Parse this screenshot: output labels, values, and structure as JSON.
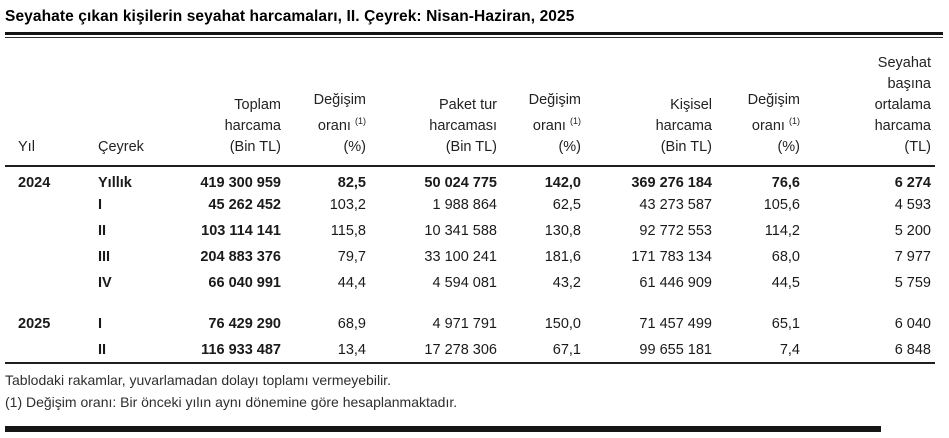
{
  "title": "Seyahate çıkan kişilerin seyahat harcamaları, II. Çeyrek: Nisan-Haziran, 2025",
  "table": {
    "columns": [
      {
        "id": "yil",
        "align": "left",
        "lines": [
          "Yıl"
        ]
      },
      {
        "id": "ceyrek",
        "align": "left",
        "lines": [
          "Çeyrek"
        ]
      },
      {
        "id": "toplam-harcama",
        "align": "right",
        "lines": [
          "Toplam",
          "harcama",
          "(Bin TL)"
        ]
      },
      {
        "id": "degisim-orani-toplam",
        "align": "right",
        "lines": [
          "Değişim",
          "oranı {sup}",
          "(%)"
        ],
        "sup": "(1)"
      },
      {
        "id": "paket-tur-harcamasi",
        "align": "right",
        "lines": [
          "Paket tur",
          "harcaması",
          "(Bin TL)"
        ]
      },
      {
        "id": "degisim-orani-paket",
        "align": "right",
        "lines": [
          "Değişim",
          "oranı {sup}",
          "(%)"
        ],
        "sup": "(1)"
      },
      {
        "id": "kisisel-harcama",
        "align": "right",
        "lines": [
          "Kişisel",
          "harcama",
          "(Bin TL)"
        ]
      },
      {
        "id": "degisim-orani-kisisel",
        "align": "right",
        "lines": [
          "Değişim",
          "oranı {sup}",
          "(%)"
        ],
        "sup": "(1)"
      },
      {
        "id": "seyahat-basina-ortalama",
        "align": "right",
        "lines": [
          "Seyahat",
          "başına",
          "ortalama",
          "harcama",
          "(TL)"
        ]
      }
    ],
    "rows": [
      {
        "year": "2024",
        "quarter": "Yıllık",
        "bold_row": true,
        "values": [
          "419 300 959",
          "82,5",
          "50 024 775",
          "142,0",
          "369 276 184",
          "76,6",
          "6 274"
        ]
      },
      {
        "year": "",
        "quarter": "I",
        "values": [
          "45 262 452",
          "103,2",
          "1 988 864",
          "62,5",
          "43 273 587",
          "105,6",
          "4 593"
        ]
      },
      {
        "year": "",
        "quarter": "II",
        "values": [
          "103 114 141",
          "115,8",
          "10 341 588",
          "130,8",
          "92 772 553",
          "114,2",
          "5 200"
        ]
      },
      {
        "year": "",
        "quarter": "III",
        "values": [
          "204 883 376",
          "79,7",
          "33 100 241",
          "181,6",
          "171 783 134",
          "68,0",
          "7 977"
        ]
      },
      {
        "year": "",
        "quarter": "IV",
        "gap_after": true,
        "values": [
          "66 040 991",
          "44,4",
          "4 594 081",
          "43,2",
          "61 446 909",
          "44,5",
          "5 759"
        ]
      },
      {
        "year": "2025",
        "quarter": "I",
        "values": [
          "76 429 290",
          "68,9",
          "4 971 791",
          "150,0",
          "71 457 499",
          "65,1",
          "6 040"
        ]
      },
      {
        "year": "",
        "quarter": "II",
        "values": [
          "116 933 487",
          "13,4",
          "17 278 306",
          "67,1",
          "99 655 181",
          "7,4",
          "6 848"
        ]
      }
    ]
  },
  "footnotes": [
    "Tablodaki rakamlar, yuvarlamadan dolayı toplamı vermeyebilir.",
    "(1) Değişim oranı: Bir önceki yılın aynı dönemine göre hesaplanmaktadır."
  ],
  "colors": {
    "text": "#1a1a1a",
    "rule": "#161616",
    "footnote": "#2e2e2e",
    "background": "#ffffff"
  },
  "chart_data": {
    "type": "table",
    "title": "Seyahate çıkan kişilerin seyahat harcamaları, II. Çeyrek: Nisan-Haziran, 2025",
    "columns": [
      "Yıl",
      "Çeyrek",
      "Toplam harcama (Bin TL)",
      "Değişim oranı (1) (%)",
      "Paket tur harcaması (Bin TL)",
      "Değişim oranı (1) (%)",
      "Kişisel harcama (Bin TL)",
      "Değişim oranı (1) (%)",
      "Seyahat başına ortalama harcama (TL)"
    ],
    "rows": [
      [
        "2024",
        "Yıllık",
        "419 300 959",
        "82,5",
        "50 024 775",
        "142,0",
        "369 276 184",
        "76,6",
        "6 274"
      ],
      [
        "2024",
        "I",
        "45 262 452",
        "103,2",
        "1 988 864",
        "62,5",
        "43 273 587",
        "105,6",
        "4 593"
      ],
      [
        "2024",
        "II",
        "103 114 141",
        "115,8",
        "10 341 588",
        "130,8",
        "92 772 553",
        "114,2",
        "5 200"
      ],
      [
        "2024",
        "III",
        "204 883 376",
        "79,7",
        "33 100 241",
        "181,6",
        "171 783 134",
        "68,0",
        "7 977"
      ],
      [
        "2024",
        "IV",
        "66 040 991",
        "44,4",
        "4 594 081",
        "43,2",
        "61 446 909",
        "44,5",
        "5 759"
      ],
      [
        "2025",
        "I",
        "76 429 290",
        "68,9",
        "4 971 791",
        "150,0",
        "71 457 499",
        "65,1",
        "6 040"
      ],
      [
        "2025",
        "II",
        "116 933 487",
        "13,4",
        "17 278 306",
        "67,1",
        "99 655 181",
        "7,4",
        "6 848"
      ]
    ]
  }
}
